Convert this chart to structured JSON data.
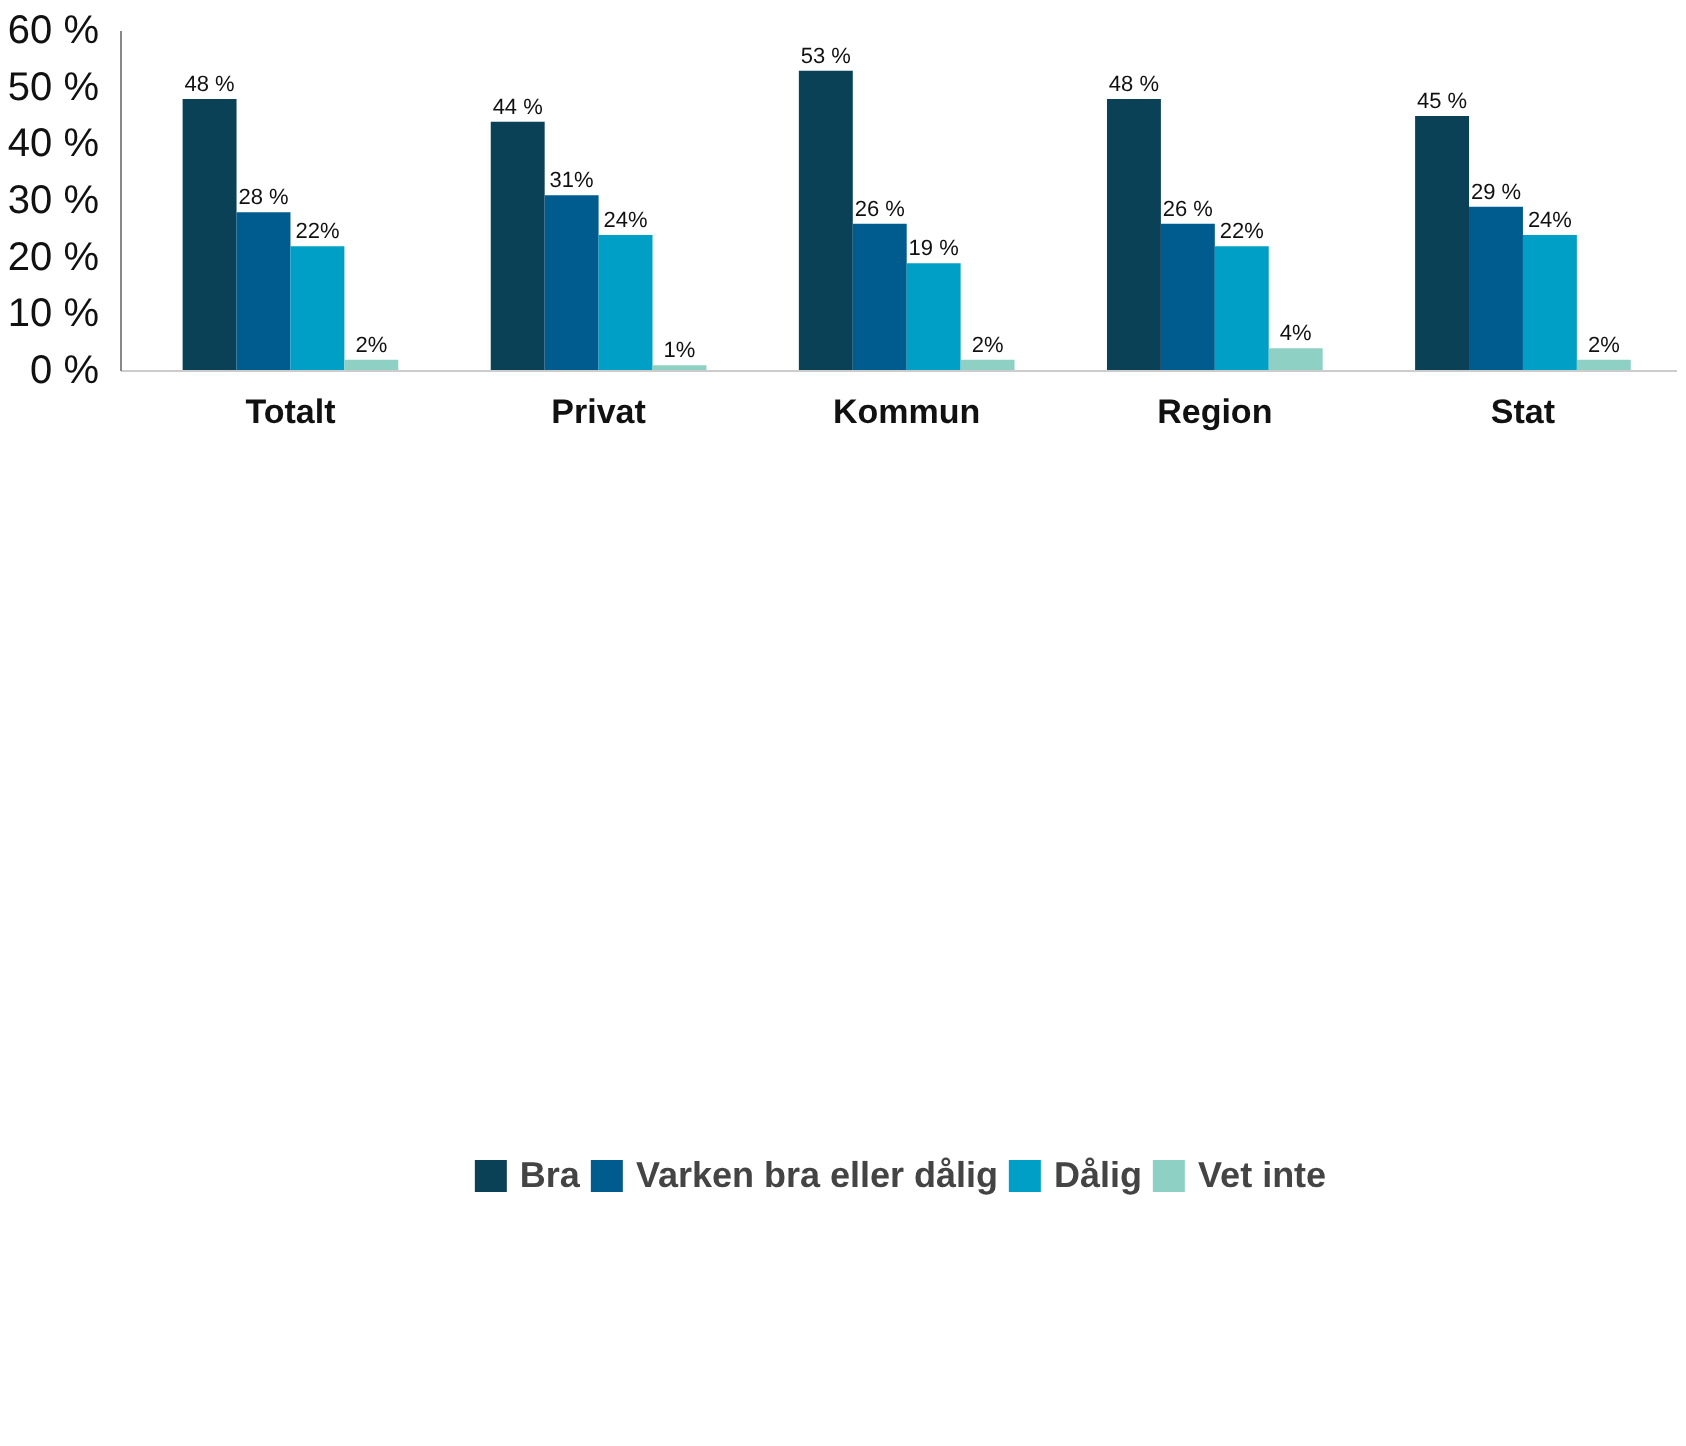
{
  "chart_data": {
    "type": "bar",
    "categories": [
      "Totalt",
      "Privat",
      "Kommun",
      "Region",
      "Stat"
    ],
    "series": [
      {
        "name": "Bra",
        "color": "#0b4156",
        "values": [
          48,
          44,
          53,
          48,
          45
        ],
        "value_labels": [
          "48 %",
          "44 %",
          "53 %",
          "48 %",
          "45 %"
        ]
      },
      {
        "name": "Varken bra eller dålig",
        "color": "#005b8f",
        "values": [
          28,
          31,
          26,
          26,
          29
        ],
        "value_labels": [
          "28 %",
          "31%",
          "26 %",
          "26 %",
          "29 %"
        ]
      },
      {
        "name": "Dålig",
        "color": "#00a0c6",
        "values": [
          22,
          24,
          19,
          22,
          24
        ],
        "value_labels": [
          "22%",
          "24%",
          "19 %",
          "22%",
          "24%"
        ]
      },
      {
        "name": "Vet inte",
        "color": "#8fd0c5",
        "values": [
          2,
          1,
          2,
          4,
          2
        ],
        "value_labels": [
          "2%",
          "1%",
          "2%",
          "4%",
          "2%"
        ]
      }
    ],
    "ylim": [
      0,
      60
    ],
    "yticks": [
      {
        "value": 0,
        "label": "0 %"
      },
      {
        "value": 10,
        "label": "10 %"
      },
      {
        "value": 20,
        "label": "20 %"
      },
      {
        "value": 30,
        "label": "30 %"
      },
      {
        "value": 40,
        "label": "40 %"
      },
      {
        "value": 50,
        "label": "50 %"
      },
      {
        "value": 60,
        "label": "60 %"
      }
    ],
    "grid": false,
    "legend": "bottom"
  }
}
